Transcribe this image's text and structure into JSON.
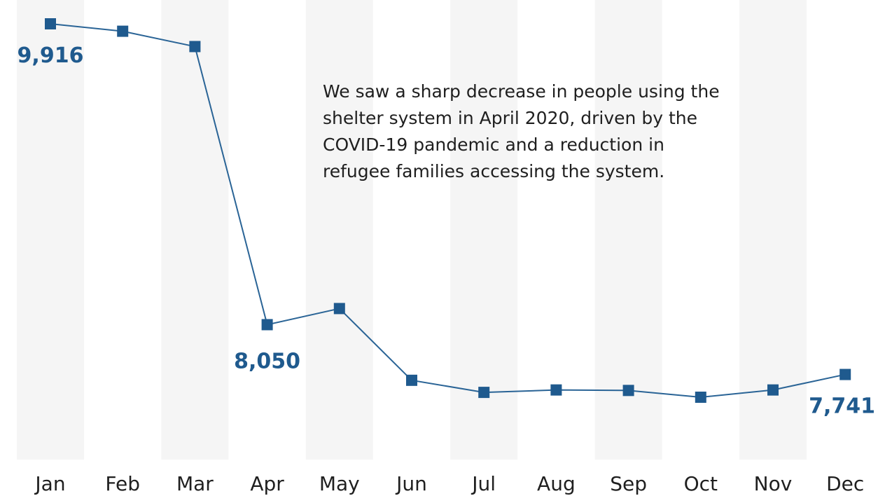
{
  "chart_data": {
    "type": "line",
    "categories": [
      "Jan",
      "Feb",
      "Mar",
      "Apr",
      "May",
      "Jun",
      "Jul",
      "Aug",
      "Sep",
      "Oct",
      "Nov",
      "Dec"
    ],
    "series": [
      {
        "values": [
          9916,
          9870,
          9775,
          8050,
          8150,
          7705,
          7630,
          7645,
          7642,
          7600,
          7645,
          7741
        ]
      }
    ],
    "data_labels": [
      {
        "index": 0,
        "text": "9,916"
      },
      {
        "index": 3,
        "text": "8,050"
      },
      {
        "index": 11,
        "text": "7,741"
      }
    ],
    "annotation": "We saw a sharp decrease in people using the shelter system in April 2020, driven by the COVID-19 pandemic and a reduction in refugee families accessing the system.",
    "legend": "none",
    "grid": false,
    "band_shading": "alternating columns",
    "colors": {
      "line": "#2a6496",
      "marker": "#1f5a8e",
      "label": "#1f5a8e",
      "band": "#f5f5f5"
    }
  }
}
